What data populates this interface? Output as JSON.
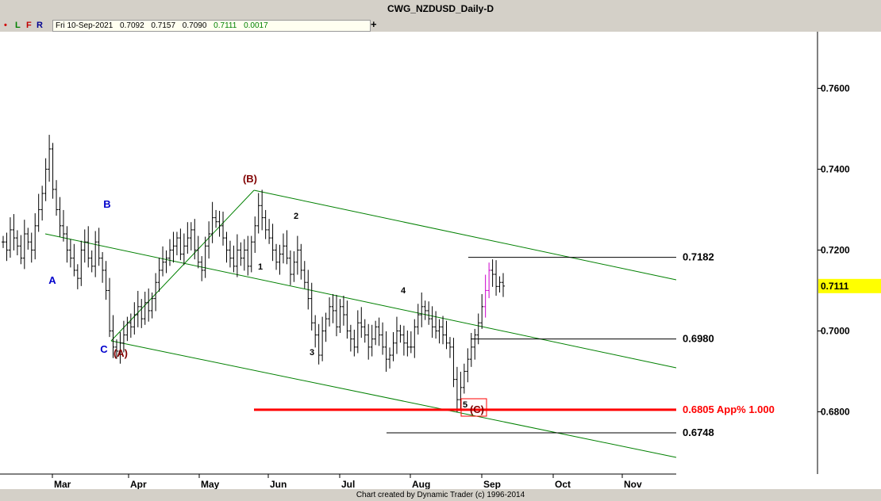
{
  "window": {
    "title": "CWG_NZDUSD_Daily-D"
  },
  "toolbar": {
    "dot": "•",
    "l": "L",
    "f": "F",
    "r": "R",
    "date": "Fri 10-Sep-2021",
    "open": "0.7092",
    "high": "0.7157",
    "low": "0.7090",
    "close": "0.7111",
    "change": "0.0017",
    "plus": "+"
  },
  "footer": {
    "credit": "Chart created by Dynamic Trader  (c) 1996-2014"
  },
  "colors": {
    "background": "#ffffff",
    "bars": "#000000",
    "channel": "#008000",
    "target": "#ff0000",
    "last_price_highlight": "#ffff00",
    "wave_blue": "#0000cc",
    "wave_brown": "#800000"
  },
  "chart_data": {
    "type": "ohlc",
    "title": "CWG_NZDUSD_Daily-D",
    "ylim": [
      0.6646,
      0.774
    ],
    "y_ticks": [
      "0.7600",
      "0.7400",
      "0.7200",
      "0.7000",
      "0.6800"
    ],
    "x_ticks": [
      "Mar",
      "Apr",
      "May",
      "Jun",
      "Jul",
      "Aug",
      "Sep",
      "Oct",
      "Nov"
    ],
    "last_price": "0.7111",
    "price_levels": [
      {
        "label": "0.7182",
        "value": 0.7182,
        "color": "#000000"
      },
      {
        "label": "0.6980",
        "value": 0.698,
        "color": "#000000"
      },
      {
        "label": "0.6805 App% 1.000",
        "value": 0.6805,
        "color": "#ff0000"
      },
      {
        "label": "0.6748",
        "value": 0.6748,
        "color": "#000000"
      }
    ],
    "wave_labels": [
      {
        "text": "A",
        "color": "#0000cc"
      },
      {
        "text": "B",
        "color": "#0000cc"
      },
      {
        "text": "C",
        "color": "#0000cc"
      },
      {
        "text": "(A)",
        "color": "#800000"
      },
      {
        "text": "(B)",
        "color": "#800000"
      },
      {
        "text": "1",
        "color": "#000000"
      },
      {
        "text": "2",
        "color": "#000000"
      },
      {
        "text": "3",
        "color": "#000000"
      },
      {
        "text": "4",
        "color": "#000000"
      },
      {
        "text": "5",
        "color": "#000000"
      },
      {
        "text": "(C)",
        "color": "#800000"
      }
    ],
    "series": [
      {
        "values": [
          0.722,
          0.72,
          0.725,
          0.723,
          0.721,
          0.718,
          0.724,
          0.722,
          0.72,
          0.726,
          0.73,
          0.734,
          0.74,
          0.745,
          0.735,
          0.73,
          0.726,
          0.724,
          0.72,
          0.718,
          0.715,
          0.713,
          0.72,
          0.722,
          0.718,
          0.716,
          0.722,
          0.718,
          0.715,
          0.71,
          0.7,
          0.696,
          0.695,
          0.697,
          0.699,
          0.702,
          0.701,
          0.704,
          0.706,
          0.703,
          0.707,
          0.705,
          0.708,
          0.712,
          0.715,
          0.717,
          0.718,
          0.72,
          0.721,
          0.723,
          0.719,
          0.721,
          0.723,
          0.725,
          0.72,
          0.717,
          0.715,
          0.721,
          0.724,
          0.728,
          0.727,
          0.726,
          0.723,
          0.72,
          0.718,
          0.716,
          0.72,
          0.718,
          0.72,
          0.716,
          0.722,
          0.726,
          0.731,
          0.728,
          0.725,
          0.723,
          0.72,
          0.717,
          0.719,
          0.721,
          0.718,
          0.714,
          0.717,
          0.72,
          0.715,
          0.712,
          0.708,
          0.702,
          0.699,
          0.694,
          0.7,
          0.703,
          0.706,
          0.705,
          0.701,
          0.706,
          0.704,
          0.7,
          0.698,
          0.696,
          0.702,
          0.701,
          0.699,
          0.696,
          0.698,
          0.701,
          0.699,
          0.696,
          0.693,
          0.694,
          0.697,
          0.7,
          0.699,
          0.697,
          0.696,
          0.696,
          0.701,
          0.704,
          0.706,
          0.705,
          0.703,
          0.701,
          0.7,
          0.701,
          0.699,
          0.697,
          0.696,
          0.688,
          0.683,
          0.686,
          0.69,
          0.693,
          0.696,
          0.699,
          0.702,
          0.706,
          0.71,
          0.715,
          0.714,
          0.711,
          0.712,
          0.7111
        ]
      }
    ],
    "channel_lines": 4
  }
}
